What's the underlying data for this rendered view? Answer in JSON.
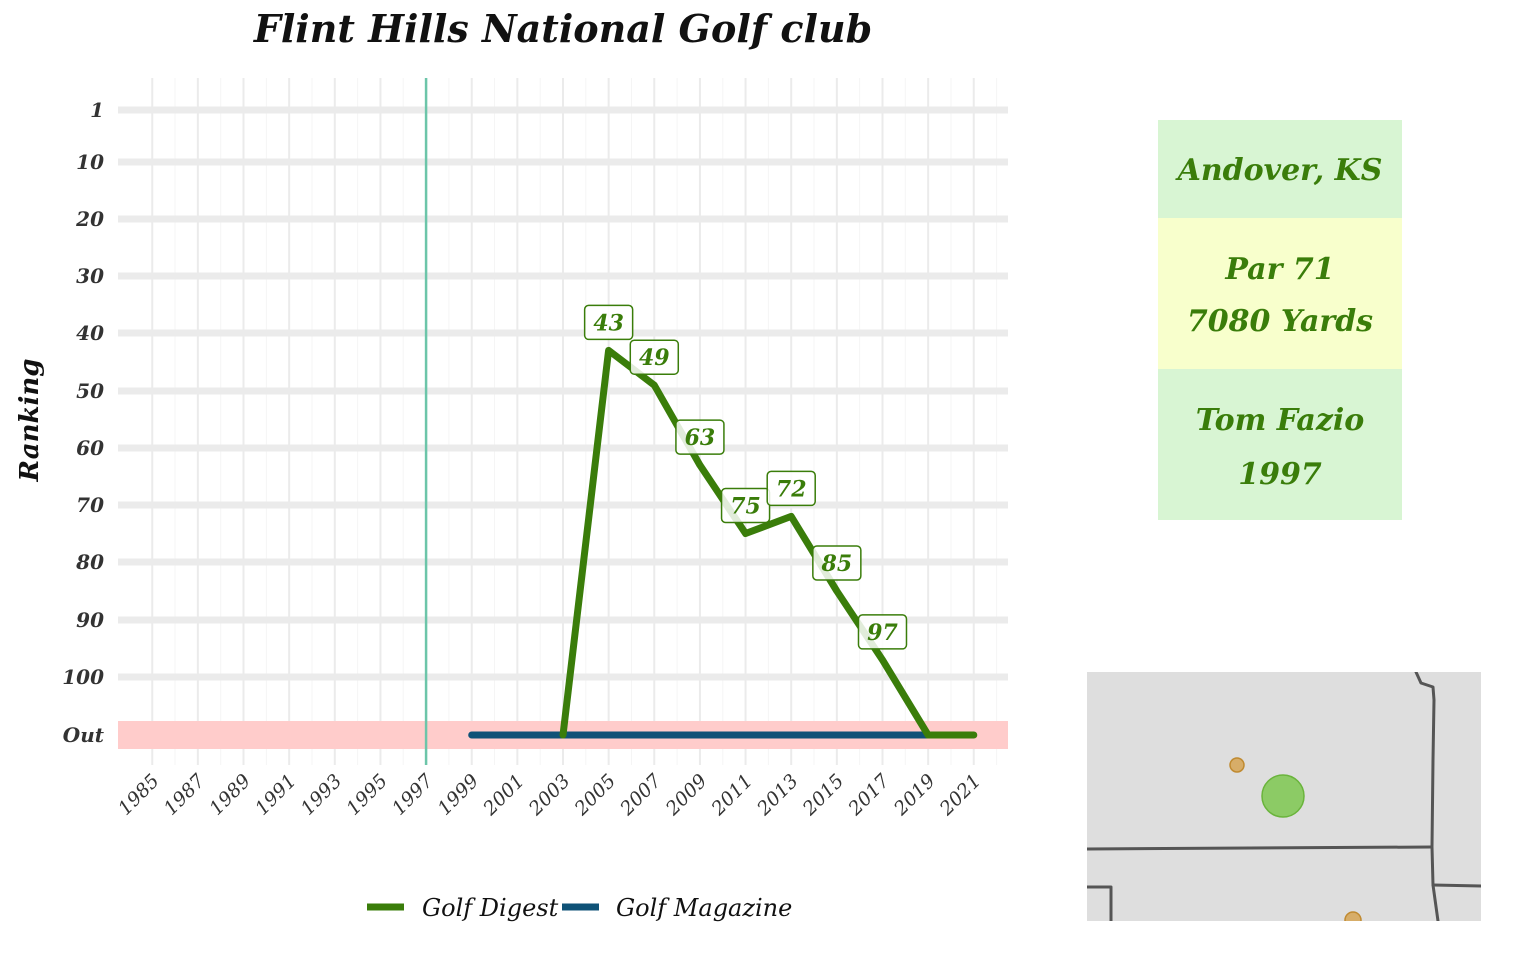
{
  "chart_data": {
    "type": "line",
    "title": "Flint Hills National Golf club",
    "ylabel": "Ranking",
    "xlabel": "",
    "x_ticks": [
      1985,
      1987,
      1989,
      1991,
      1993,
      1995,
      1997,
      1999,
      2001,
      2003,
      2005,
      2007,
      2009,
      2011,
      2013,
      2015,
      2017,
      2019,
      2021
    ],
    "xlim": [
      1983.5,
      2022.5
    ],
    "y_ticks": [
      "1",
      "10",
      "20",
      "30",
      "40",
      "50",
      "60",
      "70",
      "80",
      "90",
      "100",
      "Out"
    ],
    "y_tick_values": [
      1,
      10,
      20,
      30,
      40,
      50,
      60,
      70,
      80,
      90,
      100,
      110
    ],
    "y_reversed": true,
    "out_value": 110,
    "vline_year": 1997,
    "grid": true,
    "legend_position": "bottom",
    "series": [
      {
        "name": "Golf Digest",
        "color": "#3a7d0a",
        "x": [
          2003,
          2005,
          2007,
          2009,
          2011,
          2013,
          2015,
          2017,
          2019,
          2021
        ],
        "y": [
          110,
          43,
          49,
          63,
          75,
          72,
          85,
          97,
          110,
          110
        ],
        "labels": [
          {
            "year": 2005,
            "value": "43"
          },
          {
            "year": 2007,
            "value": "49"
          },
          {
            "year": 2009,
            "value": "63"
          },
          {
            "year": 2011,
            "value": "75"
          },
          {
            "year": 2013,
            "value": "72"
          },
          {
            "year": 2015,
            "value": "85"
          },
          {
            "year": 2017,
            "value": "97"
          }
        ]
      },
      {
        "name": "Golf Magazine",
        "color": "#0f5277",
        "x": [
          1999,
          2019
        ],
        "y": [
          110,
          110
        ]
      }
    ],
    "colors": {
      "out_band": "#ffcccb",
      "vline": "#6cc5a9",
      "grid": "#ebebeb"
    }
  },
  "info_card": {
    "location": "Andover, KS",
    "par": "Par 71",
    "yards": "7080 Yards",
    "architect": "Tom Fazio",
    "year": "1997",
    "colors": {
      "band_green": "#d8f5d3",
      "band_yellow": "#f8ffcc",
      "text": "#3a7d0a"
    }
  },
  "map": {
    "colors": {
      "background": "#dedede",
      "border": "#555555",
      "course": "#7ec850",
      "other": "#d4a04a"
    }
  }
}
